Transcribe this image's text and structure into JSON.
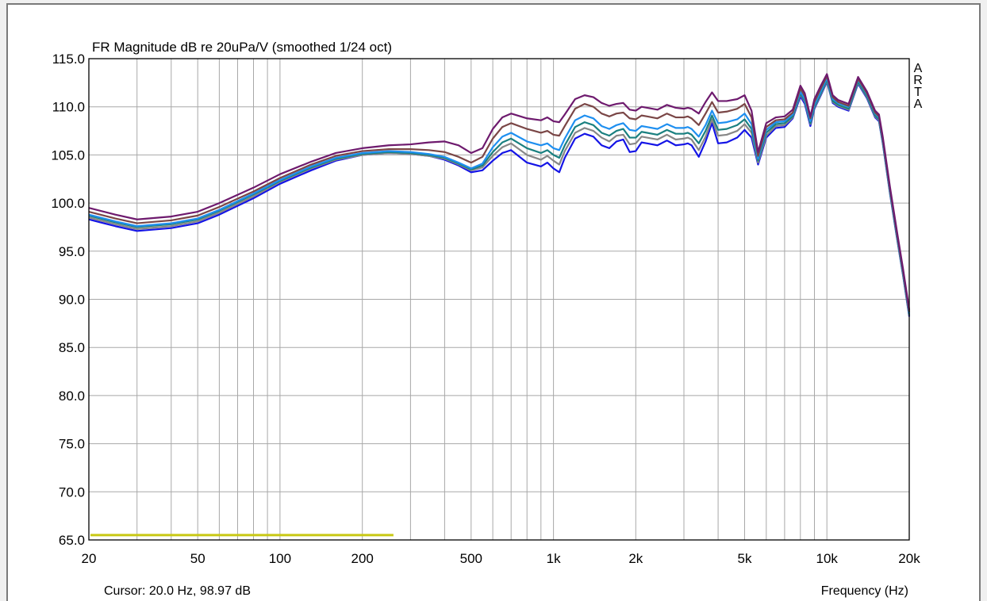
{
  "chart_data": {
    "type": "line",
    "title": "FR Magnitude dB re 20uPa/V (smoothed 1/24 oct)",
    "xlabel": "Frequency (Hz)",
    "ylabel": "",
    "watermark": "ARTA",
    "cursor_readout": "Cursor: 20.0 Hz, 98.97 dB",
    "x_scale": "log",
    "xlim": [
      20,
      20000
    ],
    "ylim": [
      65,
      115
    ],
    "grid": true,
    "x_ticks": [
      {
        "value": 20,
        "label": "20"
      },
      {
        "value": 50,
        "label": "50"
      },
      {
        "value": 100,
        "label": "100"
      },
      {
        "value": 200,
        "label": "200"
      },
      {
        "value": 500,
        "label": "500"
      },
      {
        "value": 1000,
        "label": "1k"
      },
      {
        "value": 2000,
        "label": "2k"
      },
      {
        "value": 5000,
        "label": "5k"
      },
      {
        "value": 10000,
        "label": "10k"
      },
      {
        "value": 20000,
        "label": "20k"
      }
    ],
    "y_ticks": [
      {
        "value": 115,
        "label": "115.0"
      },
      {
        "value": 110,
        "label": "110.0"
      },
      {
        "value": 105,
        "label": "105.0"
      },
      {
        "value": 100,
        "label": "100.0"
      },
      {
        "value": 95,
        "label": "95.0"
      },
      {
        "value": 90,
        "label": "90.0"
      },
      {
        "value": 85,
        "label": "85.0"
      },
      {
        "value": 80,
        "label": "80.0"
      },
      {
        "value": 75,
        "label": "75.0"
      },
      {
        "value": 70,
        "label": "70.0"
      },
      {
        "value": 65,
        "label": "65.0"
      }
    ],
    "x": [
      20,
      25,
      30,
      40,
      50,
      60,
      80,
      100,
      130,
      160,
      200,
      250,
      300,
      350,
      400,
      450,
      500,
      550,
      600,
      650,
      700,
      800,
      900,
      950,
      1000,
      1050,
      1100,
      1200,
      1300,
      1400,
      1500,
      1600,
      1700,
      1800,
      1900,
      2000,
      2100,
      2200,
      2400,
      2600,
      2800,
      3000,
      3100,
      3200,
      3400,
      3600,
      3800,
      4000,
      4300,
      4700,
      5000,
      5300,
      5600,
      6000,
      6500,
      7000,
      7500,
      8000,
      8300,
      8700,
      9000,
      9500,
      10000,
      10500,
      11000,
      12000,
      13000,
      14000,
      15000,
      15500,
      16000,
      17000,
      18000,
      19000,
      20000
    ],
    "series": [
      {
        "color": "#1414e6",
        "values": [
          98.3,
          97.6,
          97.1,
          97.4,
          97.9,
          98.8,
          100.5,
          102.0,
          103.4,
          104.4,
          105.0,
          105.2,
          105.1,
          104.9,
          104.5,
          103.9,
          103.2,
          103.4,
          104.4,
          105.2,
          105.5,
          104.2,
          103.8,
          104.2,
          103.6,
          103.2,
          104.7,
          106.7,
          107.2,
          106.9,
          106.0,
          105.7,
          106.4,
          106.6,
          105.3,
          105.4,
          106.3,
          106.2,
          106.0,
          106.5,
          106.0,
          106.1,
          106.2,
          106.0,
          104.8,
          106.4,
          108.3,
          106.2,
          106.3,
          106.8,
          107.6,
          106.8,
          104.0,
          106.8,
          107.8,
          107.9,
          108.8,
          111.1,
          110.3,
          108.0,
          109.8,
          111.2,
          112.6,
          110.4,
          110.0,
          109.6,
          112.4,
          110.9,
          108.9,
          108.5,
          106.2,
          101.0,
          96.5,
          92.4,
          88.2
        ]
      },
      {
        "color": "#878787",
        "values": [
          98.5,
          97.8,
          97.3,
          97.6,
          98.1,
          99.0,
          100.7,
          102.2,
          103.6,
          104.5,
          105.0,
          105.2,
          105.1,
          104.9,
          104.6,
          104.0,
          103.4,
          103.7,
          104.9,
          105.8,
          106.2,
          105.0,
          104.5,
          104.9,
          104.4,
          104.0,
          105.4,
          107.3,
          107.8,
          107.5,
          106.8,
          106.4,
          107.0,
          107.1,
          106.1,
          106.2,
          106.9,
          106.8,
          106.6,
          107.1,
          106.6,
          106.7,
          106.8,
          106.6,
          105.5,
          106.9,
          108.7,
          107.0,
          107.1,
          107.5,
          108.2,
          107.3,
          104.2,
          107.0,
          108.0,
          108.1,
          108.9,
          111.3,
          110.5,
          108.2,
          109.9,
          111.3,
          112.7,
          110.5,
          110.1,
          109.7,
          112.5,
          111.0,
          109.0,
          108.6,
          106.3,
          101.1,
          96.6,
          92.5,
          88.3
        ]
      },
      {
        "color": "#1a8080",
        "values": [
          98.7,
          98.0,
          97.5,
          97.8,
          98.3,
          99.2,
          100.9,
          102.3,
          103.7,
          104.6,
          105.1,
          105.3,
          105.2,
          105.0,
          104.7,
          104.1,
          103.5,
          103.9,
          105.3,
          106.3,
          106.7,
          105.7,
          105.2,
          105.5,
          105.0,
          104.7,
          106.0,
          107.9,
          108.4,
          108.1,
          107.3,
          107.0,
          107.5,
          107.7,
          106.8,
          106.8,
          107.4,
          107.3,
          107.1,
          107.6,
          107.2,
          107.2,
          107.3,
          107.1,
          106.2,
          107.5,
          109.1,
          107.6,
          107.7,
          108.1,
          108.7,
          107.7,
          104.4,
          107.3,
          108.2,
          108.3,
          109.0,
          111.4,
          110.6,
          108.3,
          110.0,
          111.4,
          112.8,
          110.6,
          110.2,
          109.8,
          112.6,
          111.1,
          109.1,
          108.7,
          106.4,
          101.2,
          96.7,
          92.6,
          88.4
        ]
      },
      {
        "color": "#1e8ff0",
        "values": [
          98.8,
          98.1,
          97.6,
          97.9,
          98.4,
          99.3,
          101.0,
          102.4,
          103.8,
          104.7,
          105.2,
          105.4,
          105.3,
          105.1,
          104.8,
          104.2,
          103.6,
          104.1,
          105.8,
          106.9,
          107.3,
          106.4,
          106.0,
          106.2,
          105.7,
          105.5,
          106.7,
          108.6,
          109.1,
          108.8,
          108.0,
          107.7,
          108.1,
          108.3,
          107.6,
          107.5,
          108.0,
          107.9,
          107.7,
          108.2,
          107.8,
          107.8,
          107.9,
          107.7,
          106.9,
          108.1,
          109.6,
          108.3,
          108.4,
          108.7,
          109.3,
          108.2,
          104.6,
          107.6,
          108.4,
          108.5,
          109.2,
          111.6,
          110.8,
          108.5,
          110.2,
          111.6,
          113.0,
          110.8,
          110.4,
          110.0,
          112.8,
          111.3,
          109.3,
          108.9,
          106.6,
          101.4,
          96.9,
          92.8,
          88.6
        ]
      },
      {
        "color": "#7a4646",
        "values": [
          99.1,
          98.4,
          97.9,
          98.2,
          98.7,
          99.6,
          101.2,
          102.6,
          104.0,
          104.9,
          105.4,
          105.6,
          105.6,
          105.5,
          105.3,
          104.8,
          104.2,
          104.8,
          106.7,
          107.9,
          108.3,
          107.7,
          107.3,
          107.5,
          107.1,
          107.0,
          108.0,
          109.8,
          110.3,
          110.0,
          109.3,
          109.0,
          109.3,
          109.4,
          108.8,
          108.7,
          109.1,
          109.0,
          108.8,
          109.3,
          108.9,
          108.9,
          109.0,
          108.8,
          108.1,
          109.3,
          110.5,
          109.4,
          109.5,
          109.8,
          110.3,
          108.9,
          104.9,
          107.9,
          108.6,
          108.7,
          109.4,
          111.9,
          111.1,
          108.8,
          110.5,
          111.9,
          113.2,
          111.0,
          110.5,
          110.1,
          112.9,
          111.4,
          109.4,
          109.0,
          106.7,
          101.5,
          97.0,
          92.9,
          88.7
        ]
      },
      {
        "color": "#6e1a6e",
        "values": [
          99.5,
          98.8,
          98.3,
          98.6,
          99.1,
          100.0,
          101.6,
          103.0,
          104.3,
          105.2,
          105.7,
          106.0,
          106.1,
          106.3,
          106.4,
          106.0,
          105.2,
          105.7,
          107.7,
          108.9,
          109.3,
          108.8,
          108.6,
          108.9,
          108.5,
          108.4,
          109.2,
          110.8,
          111.2,
          111.0,
          110.4,
          110.1,
          110.3,
          110.4,
          109.7,
          109.6,
          110.0,
          109.9,
          109.7,
          110.2,
          109.9,
          109.8,
          109.9,
          109.8,
          109.3,
          110.5,
          111.5,
          110.6,
          110.6,
          110.8,
          111.2,
          109.6,
          105.3,
          108.3,
          108.9,
          109.0,
          109.7,
          112.2,
          111.4,
          109.0,
          110.8,
          112.2,
          113.4,
          111.2,
          110.7,
          110.3,
          113.1,
          111.6,
          109.6,
          109.2,
          106.9,
          101.7,
          97.2,
          93.1,
          88.9
        ]
      }
    ],
    "reference_line": {
      "color": "#c8c814",
      "y": 65.5,
      "x_start": 20,
      "x_end": 260
    }
  }
}
